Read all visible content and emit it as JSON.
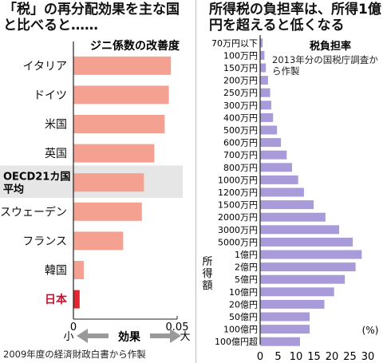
{
  "left_panel": {
    "title": "「税」の再分配効果を主な国と比べると……",
    "source": "2009年度の経済財政白書から作製"
  },
  "right_panel": {
    "title": "所得税の負担率は、所得1億円を超えると低くなる",
    "source": "2013年分の国税庁調査から作製"
  },
  "chart_data": [
    {
      "type": "bar",
      "orientation": "horizontal",
      "title": "ジニ係数の改善度",
      "categories": [
        "イタリア",
        "ドイツ",
        "米国",
        "英国",
        "OECD21カ国平均",
        "スウェーデン",
        "フランス",
        "韓国",
        "日本"
      ],
      "values": [
        0.047,
        0.046,
        0.044,
        0.039,
        0.034,
        0.033,
        0.024,
        0.005,
        0.003
      ],
      "highlight_category": "OECD21カ国平均",
      "xlim": [
        0,
        0.05
      ],
      "xticks": [
        "0",
        "0.05"
      ],
      "axis_note": {
        "small": "小",
        "label": "効果",
        "large": "大"
      },
      "colors": {
        "bar": "#f4a191",
        "japan": "#e3252d",
        "highlight_band": "#e6e6e6"
      }
    },
    {
      "type": "bar",
      "orientation": "horizontal",
      "title": "税負担率",
      "ylabel": "所得額",
      "xlabel": "(%)",
      "categories": [
        "70万円以下",
        "100万円",
        "150万円",
        "200万円",
        "250万円",
        "300万円",
        "400万円",
        "500万円",
        "600万円",
        "700万円",
        "800万円",
        "1000万円",
        "1200万円",
        "1500万円",
        "2000万円",
        "3000万円",
        "5000万円",
        "1億円",
        "2億円",
        "5億円",
        "10億円",
        "20億円",
        "50億円",
        "100億円",
        "100億円超"
      ],
      "values": [
        0.7,
        1.2,
        1.6,
        2.2,
        2.8,
        3.1,
        3.6,
        4.7,
        5.8,
        7.4,
        8.9,
        10.6,
        12.2,
        14.9,
        18.2,
        22.0,
        25.8,
        28.3,
        26.6,
        23.6,
        20.6,
        17.9,
        13.8,
        13.8,
        11.1
      ],
      "xlim": [
        0,
        30
      ],
      "xticks": [
        "0",
        "5",
        "10",
        "15",
        "20",
        "25",
        "30"
      ],
      "colors": {
        "bar": "#a99bd9"
      }
    }
  ]
}
